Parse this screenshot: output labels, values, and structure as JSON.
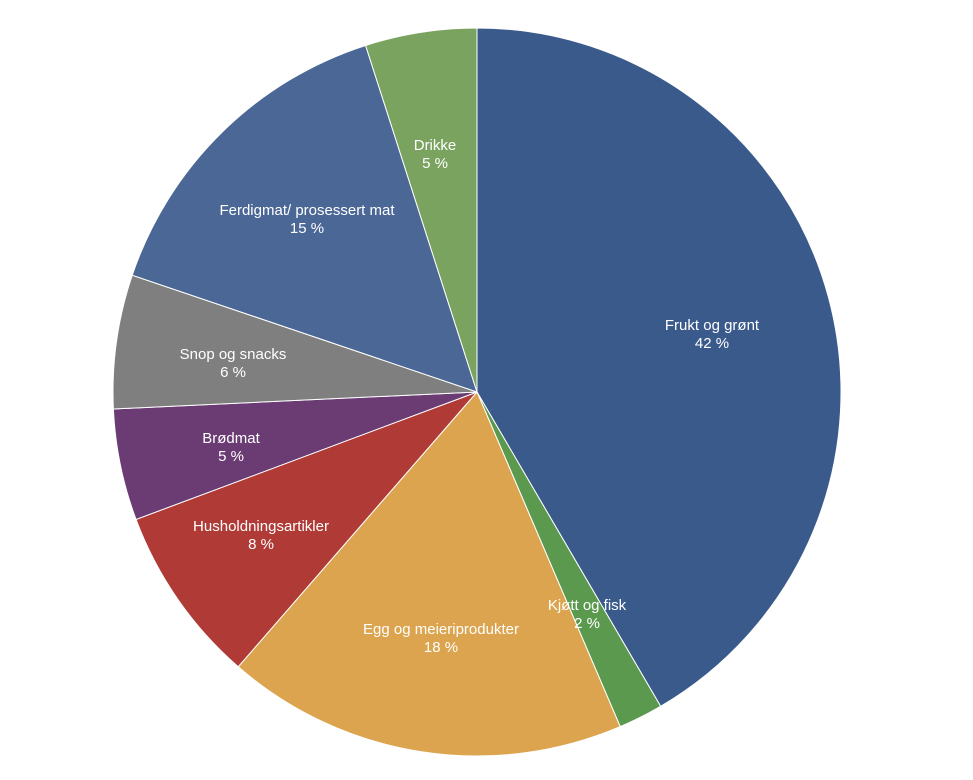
{
  "chart_data": {
    "type": "pie",
    "start_angle_deg": 0,
    "direction": "clockwise",
    "slices": [
      {
        "label": "Frukt og grønt",
        "value": 42,
        "value_label": "42 %",
        "color": "#3a5a8c"
      },
      {
        "label": "Kjøtt og fisk",
        "value": 2,
        "value_label": "2 %",
        "color": "#5b9a4e"
      },
      {
        "label": "Egg og meieriprodukter",
        "value": 18,
        "value_label": "18 %",
        "color": "#dca44e"
      },
      {
        "label": "Husholdningsartikler",
        "value": 8,
        "value_label": "8 %",
        "color": "#b03a36"
      },
      {
        "label": "Brødmat",
        "value": 5,
        "value_label": "5 %",
        "color": "#6b3c73"
      },
      {
        "label": "Snop og snacks",
        "value": 6,
        "value_label": "6 %",
        "color": "#7f7f7f"
      },
      {
        "label": "Ferdigmat/ prosessert mat",
        "value": 15,
        "value_label": "15 %",
        "color": "#4b6796"
      },
      {
        "label": "Drikke",
        "value": 5,
        "value_label": "5 %",
        "color": "#7aa35f"
      }
    ]
  }
}
